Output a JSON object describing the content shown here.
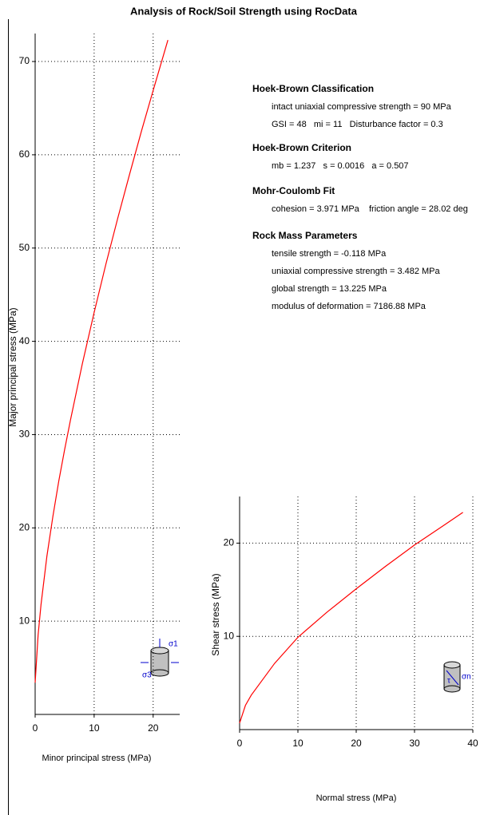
{
  "title": "Analysis of Rock/Soil Strength using RocData",
  "info": [
    {
      "heading": "Hoek-Brown Classification",
      "lines": [
        "intact uniaxial compressive strength = 90 MPa",
        "GSI = 48   mi = 11   Disturbance factor = 0.3"
      ]
    },
    {
      "heading": "Hoek-Brown Criterion",
      "lines": [
        "mb = 1.237   s = 0.0016   a = 0.507"
      ]
    },
    {
      "heading": "Mohr-Coulomb Fit",
      "lines": [
        "cohesion = 3.971 MPa    friction angle = 28.02 deg"
      ]
    },
    {
      "heading": "Rock Mass Parameters",
      "lines": [
        "tensile strength = -0.118 MPa",
        "uniaxial compressive strength = 3.482 MPa",
        "global strength = 13.225 MPa",
        "modulus of deformation = 7186.88 MPa"
      ]
    }
  ],
  "chart_data": [
    {
      "type": "line",
      "xlabel": "Minor principal stress (MPa)",
      "ylabel": "Major principal stress (MPa)",
      "x": [
        0,
        0.5,
        1,
        2,
        3,
        4,
        5,
        6,
        8,
        10,
        12,
        14,
        16,
        18,
        20,
        22.5
      ],
      "values": [
        3.4,
        8.5,
        11.8,
        17.0,
        21.2,
        25.0,
        28.4,
        31.6,
        37.6,
        43.1,
        48.3,
        53.2,
        57.9,
        62.5,
        66.9,
        72.3
      ],
      "color": "#ff0000",
      "xlim": [
        0,
        24.5
      ],
      "ylim": [
        0,
        73
      ],
      "xticks": [
        0,
        10,
        20
      ],
      "yticks": [
        10,
        20,
        30,
        40,
        50,
        60,
        70
      ],
      "grid": true,
      "icon_labels": [
        "σ1",
        "σ3"
      ]
    },
    {
      "type": "line",
      "xlabel": "Normal stress (MPa)",
      "ylabel": "Shear stress (MPa)",
      "x": [
        0,
        1,
        2,
        4,
        6,
        8,
        10,
        15,
        20,
        25,
        30,
        35,
        38.3
      ],
      "values": [
        0.7,
        2.6,
        3.7,
        5.4,
        7.1,
        8.5,
        9.9,
        12.6,
        15.1,
        17.5,
        19.8,
        21.9,
        23.3
      ],
      "color": "#ff0000",
      "xlim": [
        0,
        40
      ],
      "ylim": [
        0,
        25
      ],
      "xticks": [
        0,
        10,
        20,
        30,
        40
      ],
      "yticks": [
        10,
        20
      ],
      "grid": true,
      "icon_labels": [
        "σn",
        "τ"
      ]
    }
  ]
}
